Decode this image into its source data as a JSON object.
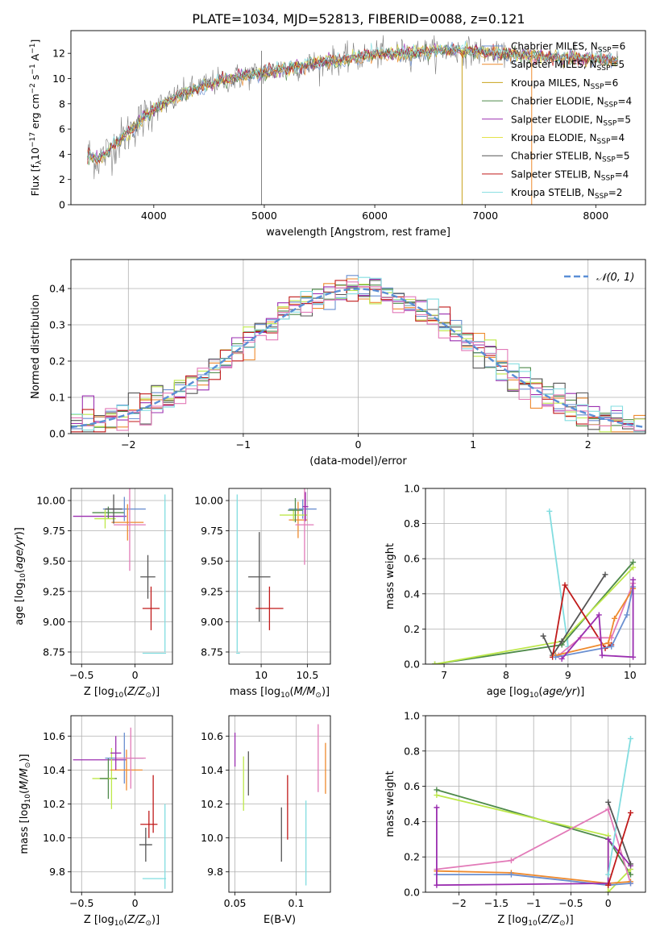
{
  "figure": {
    "title": "PLATE=1034, MJD=52813, FIBERID=0088, z=0.121"
  },
  "colors": {
    "Chabrier MILES": "#6a8fd0",
    "Salpeter MILES": "#ee8a2e",
    "Kroupa MILES": "#c8a21c",
    "Chabrier ELODIE": "#4e8a4a",
    "Salpeter ELODIE": "#9b2fb0",
    "Kroupa ELODIE": "#e4e24a",
    "Chabrier STELIB": "#555555",
    "Salpeter STELIB": "#c01a1a",
    "Kroupa STELIB": "#82dde0",
    "data": "#7f7f7f",
    "gaussian": "#5b8fd6",
    "pink": "#e27ab8",
    "lime": "#bde84a"
  },
  "chart_data": [
    {
      "id": "spectrum",
      "type": "line",
      "xlabel": "wavelength [Angstrom, rest frame]",
      "ylabel": "Flux [f_λ10^-17 erg cm^-2 s^-1 A^-1]",
      "xlim": [
        3250,
        8450
      ],
      "ylim": [
        0,
        13.8
      ],
      "xticks": [
        4000,
        5000,
        6000,
        7000,
        8000
      ],
      "yticks": [
        0,
        2,
        4,
        6,
        8,
        10,
        12
      ],
      "grid": false,
      "legend_position": "right",
      "x": [
        3400,
        3500,
        3600,
        3700,
        3800,
        3900,
        4000,
        4200,
        4400,
        4600,
        4800,
        5000,
        5200,
        5400,
        5600,
        5800,
        6000,
        6200,
        6400,
        6600,
        6800,
        7000,
        7200,
        7400,
        7600,
        7800,
        8000,
        8200
      ],
      "y": [
        4.0,
        3.6,
        4.3,
        5.2,
        6.0,
        6.8,
        7.6,
        8.5,
        9.3,
        9.8,
        10.2,
        10.5,
        10.8,
        11.1,
        11.4,
        11.6,
        11.9,
        12.0,
        12.1,
        12.2,
        12.2,
        12.1,
        11.9,
        11.8,
        11.7,
        11.6,
        11.5,
        11.4
      ],
      "series": [
        {
          "name": "Chabrier MILES, N_SSP=6",
          "legend_main": "Chabrier MILES, N",
          "legend_sub": "SSP",
          "legend_tail": "=6"
        },
        {
          "name": "Salpeter MILES, N_SSP=5",
          "legend_main": "Salpeter MILES, N",
          "legend_sub": "SSP",
          "legend_tail": "=5"
        },
        {
          "name": "Kroupa MILES, N_SSP=6",
          "legend_main": "Kroupa MILES, N",
          "legend_sub": "SSP",
          "legend_tail": "=6"
        },
        {
          "name": "Chabrier ELODIE, N_SSP=4",
          "legend_main": "Chabrier ELODIE, N",
          "legend_sub": "SSP",
          "legend_tail": "=4"
        },
        {
          "name": "Salpeter ELODIE, N_SSP=5",
          "legend_main": "Salpeter ELODIE, N",
          "legend_sub": "SSP",
          "legend_tail": "=5"
        },
        {
          "name": "Kroupa ELODIE, N_SSP=4",
          "legend_main": "Kroupa ELODIE, N",
          "legend_sub": "SSP",
          "legend_tail": "=4"
        },
        {
          "name": "Chabrier STELIB, N_SSP=5",
          "legend_main": "Chabrier STELIB, N",
          "legend_sub": "SSP",
          "legend_tail": "=5"
        },
        {
          "name": "Salpeter STELIB, N_SSP=4",
          "legend_main": "Salpeter STELIB, N",
          "legend_sub": "SSP",
          "legend_tail": "=4"
        },
        {
          "name": "Kroupa STELIB, N_SSP=2",
          "legend_main": "Kroupa STELIB, N",
          "legend_sub": "SSP",
          "legend_tail": "=2"
        }
      ]
    },
    {
      "id": "residuals",
      "type": "line",
      "xlabel": "(data-model)/error",
      "ylabel": "Normed distribution",
      "xlim": [
        -2.5,
        2.5
      ],
      "ylim": [
        0,
        0.48
      ],
      "xticks": [
        -2,
        -1,
        0,
        1,
        2
      ],
      "yticks": [
        0.0,
        0.1,
        0.2,
        0.3,
        0.4
      ],
      "grid": true,
      "legend_position": "top-right",
      "legend_label": "𝒩(0, 1)",
      "bin_width": 0.1,
      "series": [
        {
          "name": "gaussian",
          "mu": 0,
          "sigma": 1
        }
      ]
    },
    {
      "id": "age_vs_Z",
      "type": "scatter",
      "xlabel": "Z [log10(Z/Z⊙)]",
      "ylabel": "age [log10(age/yr)]",
      "xlim": [
        -0.6,
        0.35
      ],
      "ylim": [
        8.65,
        10.1
      ],
      "xticks": [
        -0.5,
        0.0
      ],
      "yticks": [
        8.75,
        9.0,
        9.25,
        9.5,
        9.75,
        10.0
      ],
      "grid": true,
      "points": [
        {
          "x": -0.33,
          "y": 9.87,
          "xerr": 0.25,
          "yerr": 0.0,
          "c": "#9b2fb0"
        },
        {
          "x": -0.25,
          "y": 9.9,
          "xerr": 0.15,
          "yerr": 0.05,
          "c": "#4e8a4a"
        },
        {
          "x": -0.28,
          "y": 9.85,
          "xerr": 0.1,
          "yerr": 0.08,
          "c": "#bde84a"
        },
        {
          "x": -0.1,
          "y": 9.93,
          "xerr": 0.2,
          "yerr": 0.1,
          "c": "#6a8fd0"
        },
        {
          "x": -0.07,
          "y": 9.82,
          "xerr": 0.15,
          "yerr": 0.15,
          "c": "#ee8a2e"
        },
        {
          "x": -0.05,
          "y": 9.8,
          "xerr": 0.15,
          "yerr": 0.38,
          "c": "#e27ab8"
        },
        {
          "x": -0.2,
          "y": 9.93,
          "xerr": 0.08,
          "yerr": 0.12,
          "c": "#555555"
        },
        {
          "x": 0.12,
          "y": 9.37,
          "xerr": 0.07,
          "yerr": 0.18,
          "c": "#555555"
        },
        {
          "x": 0.15,
          "y": 9.11,
          "xerr": 0.08,
          "yerr": 0.18,
          "c": "#c01a1a"
        },
        {
          "x": 0.18,
          "y": 8.74,
          "xerr": 0.11,
          "yerr": 0.0,
          "c": "#82dde0"
        },
        {
          "x": 0.28,
          "y": 9.4,
          "xerr": 0.0,
          "yerr": 0.65,
          "c": "#82dde0"
        }
      ]
    },
    {
      "id": "age_vs_mass",
      "type": "scatter",
      "xlabel": "mass [log10(M/M⊙)]",
      "ylabel": "",
      "xlim": [
        9.65,
        10.75
      ],
      "ylim": [
        8.65,
        10.1
      ],
      "xticks": [
        10.0,
        10.5
      ],
      "yticks": [
        8.75,
        9.0,
        9.25,
        9.5,
        9.75,
        10.0
      ],
      "grid": true,
      "points": [
        {
          "x": 10.45,
          "y": 9.93,
          "xerr": 0.15,
          "yerr": 0.08,
          "c": "#6a8fd0"
        },
        {
          "x": 10.4,
          "y": 9.84,
          "xerr": 0.1,
          "yerr": 0.15,
          "c": "#ee8a2e"
        },
        {
          "x": 10.47,
          "y": 9.8,
          "xerr": 0.1,
          "yerr": 0.33,
          "c": "#e27ab8"
        },
        {
          "x": 10.35,
          "y": 9.88,
          "xerr": 0.15,
          "yerr": 0.05,
          "c": "#bde84a"
        },
        {
          "x": 10.37,
          "y": 9.92,
          "xerr": 0.08,
          "yerr": 0.1,
          "c": "#4e8a4a"
        },
        {
          "x": 10.48,
          "y": 9.95,
          "xerr": 0.03,
          "yerr": 0.12,
          "c": "#9b2fb0"
        },
        {
          "x": 9.98,
          "y": 9.37,
          "xerr": 0.12,
          "yerr": 0.37,
          "c": "#555555"
        },
        {
          "x": 10.09,
          "y": 9.11,
          "xerr": 0.15,
          "yerr": 0.18,
          "c": "#c01a1a"
        },
        {
          "x": 9.75,
          "y": 8.74,
          "xerr": 0.02,
          "yerr": 0.0,
          "c": "#82dde0"
        },
        {
          "x": 9.74,
          "y": 9.4,
          "xerr": 0.0,
          "yerr": 0.65,
          "c": "#82dde0"
        }
      ]
    },
    {
      "id": "weight_vs_age",
      "type": "line",
      "xlabel": "age [log10(age/yr)]",
      "ylabel": "mass weight",
      "xlim": [
        6.7,
        10.25
      ],
      "ylim": [
        0,
        1.0
      ],
      "xticks": [
        7,
        8,
        9,
        10
      ],
      "yticks": [
        0.0,
        0.2,
        0.4,
        0.6,
        0.8,
        1.0
      ],
      "grid": true,
      "series": [
        {
          "c": "#82dde0",
          "points": [
            [
              8.7,
              0.87
            ],
            [
              9.0,
              0.1
            ]
          ]
        },
        {
          "c": "#4e8a4a",
          "points": [
            [
              6.85,
              0.0
            ],
            [
              8.9,
              0.11
            ],
            [
              10.05,
              0.58
            ]
          ]
        },
        {
          "c": "#bde84a",
          "points": [
            [
              6.85,
              0.0
            ],
            [
              8.9,
              0.13
            ],
            [
              10.05,
              0.55
            ]
          ]
        },
        {
          "c": "#555555",
          "points": [
            [
              8.6,
              0.16
            ],
            [
              8.75,
              0.05
            ],
            [
              8.9,
              0.13
            ],
            [
              9.6,
              0.51
            ]
          ]
        },
        {
          "c": "#c01a1a",
          "points": [
            [
              8.75,
              0.04
            ],
            [
              8.95,
              0.45
            ],
            [
              9.6,
              0.09
            ],
            [
              9.7,
              0.11
            ]
          ]
        },
        {
          "c": "#e27ab8",
          "points": [
            [
              8.85,
              0.05
            ],
            [
              9.2,
              0.15
            ],
            [
              9.7,
              0.15
            ],
            [
              10.05,
              0.46
            ]
          ]
        },
        {
          "c": "#ee8a2e",
          "points": [
            [
              8.8,
              0.05
            ],
            [
              9.65,
              0.12
            ],
            [
              9.75,
              0.26
            ],
            [
              10.05,
              0.43
            ]
          ]
        },
        {
          "c": "#6a8fd0",
          "points": [
            [
              8.8,
              0.04
            ],
            [
              9.7,
              0.1
            ],
            [
              9.95,
              0.28
            ],
            [
              10.05,
              0.44
            ]
          ]
        },
        {
          "c": "#9b2fb0",
          "points": [
            [
              8.9,
              0.03
            ],
            [
              9.5,
              0.28
            ],
            [
              9.55,
              0.05
            ],
            [
              10.05,
              0.04
            ],
            [
              10.05,
              0.48
            ]
          ]
        }
      ]
    },
    {
      "id": "mass_vs_Z",
      "type": "scatter",
      "xlabel": "Z [log10(Z/Z⊙)]",
      "ylabel": "mass [log10(M/M⊙)]",
      "xlim": [
        -0.6,
        0.35
      ],
      "ylim": [
        9.68,
        10.72
      ],
      "xticks": [
        -0.5,
        0.0
      ],
      "yticks": [
        9.8,
        10.0,
        10.2,
        10.4,
        10.6
      ],
      "grid": true,
      "points": [
        {
          "x": -0.33,
          "y": 10.46,
          "xerr": 0.25,
          "yerr": 0.0,
          "c": "#9b2fb0"
        },
        {
          "x": -0.3,
          "y": 10.35,
          "xerr": 0.1,
          "yerr": 0.0,
          "c": "#bde84a"
        },
        {
          "x": -0.25,
          "y": 10.35,
          "xerr": 0.08,
          "yerr": 0.12,
          "c": "#4e8a4a"
        },
        {
          "x": -0.22,
          "y": 10.35,
          "xerr": 0.03,
          "yerr": 0.18,
          "c": "#bde84a"
        },
        {
          "x": -0.1,
          "y": 10.47,
          "xerr": 0.18,
          "yerr": 0.15,
          "c": "#6a8fd0"
        },
        {
          "x": -0.08,
          "y": 10.4,
          "xerr": 0.15,
          "yerr": 0.12,
          "c": "#ee8a2e"
        },
        {
          "x": -0.04,
          "y": 10.47,
          "xerr": 0.14,
          "yerr": 0.18,
          "c": "#e27ab8"
        },
        {
          "x": -0.18,
          "y": 10.5,
          "xerr": 0.05,
          "yerr": 0.1,
          "c": "#9b2fb0"
        },
        {
          "x": 0.1,
          "y": 9.96,
          "xerr": 0.06,
          "yerr": 0.1,
          "c": "#555555"
        },
        {
          "x": 0.13,
          "y": 10.08,
          "xerr": 0.08,
          "yerr": 0.08,
          "c": "#c01a1a"
        },
        {
          "x": 0.17,
          "y": 10.2,
          "xerr": 0.0,
          "yerr": 0.17,
          "c": "#c01a1a"
        },
        {
          "x": 0.18,
          "y": 9.76,
          "xerr": 0.11,
          "yerr": 0.0,
          "c": "#82dde0"
        },
        {
          "x": 0.28,
          "y": 9.95,
          "xerr": 0.0,
          "yerr": 0.25,
          "c": "#82dde0"
        }
      ]
    },
    {
      "id": "mass_vs_EBV",
      "type": "scatter",
      "xlabel": "E(B-V)",
      "ylabel": "",
      "xlim": [
        0.045,
        0.128
      ],
      "ylim": [
        9.68,
        10.72
      ],
      "xticks": [
        0.05,
        0.1
      ],
      "yticks": [
        9.8,
        10.0,
        10.2,
        10.4,
        10.6
      ],
      "grid": true,
      "points": [
        {
          "x": 0.05,
          "y": 10.52,
          "xerr": 0.0,
          "yerr": 0.1,
          "c": "#9b2fb0"
        },
        {
          "x": 0.057,
          "y": 10.32,
          "xerr": 0.0,
          "yerr": 0.16,
          "c": "#bde84a"
        },
        {
          "x": 0.061,
          "y": 10.38,
          "xerr": 0.0,
          "yerr": 0.13,
          "c": "#555555"
        },
        {
          "x": 0.088,
          "y": 10.02,
          "xerr": 0.0,
          "yerr": 0.16,
          "c": "#555555"
        },
        {
          "x": 0.093,
          "y": 10.18,
          "xerr": 0.0,
          "yerr": 0.19,
          "c": "#c01a1a"
        },
        {
          "x": 0.108,
          "y": 9.97,
          "xerr": 0.0,
          "yerr": 0.25,
          "c": "#82dde0"
        },
        {
          "x": 0.118,
          "y": 10.47,
          "xerr": 0.0,
          "yerr": 0.2,
          "c": "#e27ab8"
        },
        {
          "x": 0.124,
          "y": 10.41,
          "xerr": 0.0,
          "yerr": 0.15,
          "c": "#ee8a2e"
        }
      ]
    },
    {
      "id": "weight_vs_Z",
      "type": "line",
      "xlabel": "Z [log10(Z/Z⊙)]",
      "ylabel": "mass weight",
      "xlim": [
        -2.45,
        0.5
      ],
      "ylim": [
        0,
        1.0
      ],
      "xticks": [
        -2.0,
        -1.5,
        -1.0,
        -0.5,
        0.0
      ],
      "yticks": [
        0.0,
        0.2,
        0.4,
        0.6,
        0.8,
        1.0
      ],
      "grid": true,
      "series": [
        {
          "c": "#4e8a4a",
          "points": [
            [
              -2.3,
              0.58
            ],
            [
              0.0,
              0.3
            ],
            [
              0.3,
              0.1
            ]
          ]
        },
        {
          "c": "#bde84a",
          "points": [
            [
              -2.3,
              0.55
            ],
            [
              0.0,
              0.32
            ],
            [
              0.0,
              0.0
            ],
            [
              0.3,
              0.13
            ]
          ]
        },
        {
          "c": "#e27ab8",
          "points": [
            [
              -2.3,
              0.13
            ],
            [
              -1.3,
              0.18
            ],
            [
              0.0,
              0.47
            ],
            [
              0.3,
              0.05
            ]
          ]
        },
        {
          "c": "#ee8a2e",
          "points": [
            [
              -2.3,
              0.12
            ],
            [
              -1.3,
              0.11
            ],
            [
              0.0,
              0.05
            ],
            [
              0.3,
              0.06
            ]
          ]
        },
        {
          "c": "#6a8fd0",
          "points": [
            [
              -2.3,
              0.1
            ],
            [
              -1.3,
              0.1
            ],
            [
              0.0,
              0.04
            ],
            [
              0.3,
              0.05
            ]
          ]
        },
        {
          "c": "#9b2fb0",
          "points": [
            [
              -2.3,
              0.48
            ],
            [
              -2.3,
              0.04
            ],
            [
              0.0,
              0.05
            ],
            [
              0.0,
              0.3
            ],
            [
              0.3,
              0.15
            ]
          ]
        },
        {
          "c": "#82dde0",
          "points": [
            [
              0.0,
              0.1
            ],
            [
              0.3,
              0.87
            ]
          ]
        },
        {
          "c": "#555555",
          "points": [
            [
              0.0,
              0.51
            ],
            [
              0.3,
              0.16
            ]
          ]
        },
        {
          "c": "#c01a1a",
          "points": [
            [
              0.0,
              0.04
            ],
            [
              0.3,
              0.45
            ]
          ]
        }
      ]
    }
  ]
}
